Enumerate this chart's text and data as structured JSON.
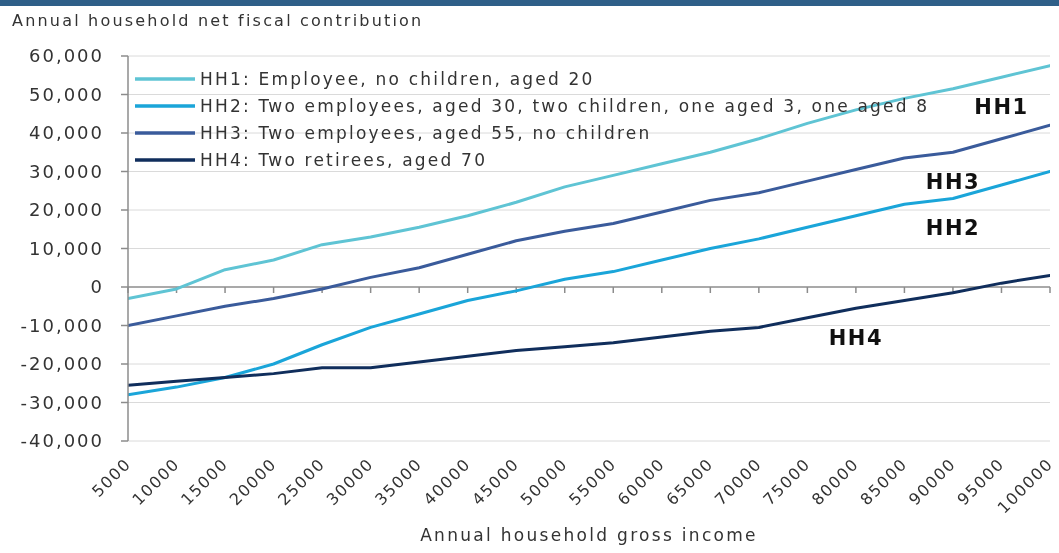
{
  "chart_data": {
    "type": "line",
    "ylabel": "Annual household net fiscal contribution",
    "xlabel": "Annual household gross income",
    "x": [
      5000,
      10000,
      15000,
      20000,
      25000,
      30000,
      35000,
      40000,
      45000,
      50000,
      55000,
      60000,
      65000,
      70000,
      75000,
      80000,
      85000,
      90000,
      95000,
      100000
    ],
    "series": [
      {
        "name": "HH1: Employee, no children, aged 20",
        "color": "#5fc4d4",
        "values": [
          -3000,
          -500,
          4500,
          7000,
          11000,
          13000,
          15500,
          18500,
          22000,
          26000,
          29000,
          32000,
          35000,
          38500,
          42500,
          46000,
          49000,
          51500,
          54500,
          57500
        ]
      },
      {
        "name": "HH2: Two employees, aged 30, two children, one aged 3, one aged 8",
        "color": "#1aa5d9",
        "values": [
          -28000,
          -26000,
          -23500,
          -20000,
          -15000,
          -10500,
          -7000,
          -3500,
          -1000,
          2000,
          4000,
          7000,
          10000,
          12500,
          15500,
          18500,
          21500,
          23000,
          26500,
          30000
        ]
      },
      {
        "name": "HH3: Two employees, aged 55, no children",
        "color": "#3a5b9b",
        "values": [
          -10000,
          -7500,
          -5000,
          -3000,
          -500,
          2500,
          5000,
          8500,
          12000,
          14500,
          16500,
          19500,
          22500,
          24500,
          27500,
          30500,
          33500,
          35000,
          38500,
          42000
        ]
      },
      {
        "name": "HH4: Two retirees, aged 70",
        "color": "#102e5c",
        "values": [
          -25500,
          -24500,
          -23500,
          -22500,
          -21000,
          -21000,
          -19500,
          -18000,
          -16500,
          -15500,
          -14500,
          -13000,
          -11500,
          -10500,
          -8000,
          -5500,
          -3500,
          -1500,
          1000,
          3000
        ]
      }
    ],
    "xlim": [
      5000,
      100000
    ],
    "xticks": [
      5000,
      10000,
      15000,
      20000,
      25000,
      30000,
      35000,
      40000,
      45000,
      50000,
      55000,
      60000,
      65000,
      70000,
      75000,
      80000,
      85000,
      90000,
      95000,
      100000
    ],
    "ylim": [
      -40000,
      60000
    ],
    "yticks": [
      {
        "value": -40000,
        "label": "-40,000"
      },
      {
        "value": -30000,
        "label": "-30,000"
      },
      {
        "value": -20000,
        "label": "-20,000"
      },
      {
        "value": -10000,
        "label": "-10,000"
      },
      0,
      {
        "value": 10000,
        "label": "10,000"
      },
      {
        "value": 20000,
        "label": "20,000"
      },
      {
        "value": 30000,
        "label": "30,000"
      },
      {
        "value": 40000,
        "label": "40,000"
      },
      {
        "value": 50000,
        "label": "50,000"
      },
      {
        "value": 60000,
        "label": "60,000"
      }
    ],
    "grid": "y",
    "legend": "top left",
    "marker": "none",
    "line_style": "solid",
    "annotations": [
      {
        "text": "HH1",
        "x": 95000,
        "y": 54500
      },
      {
        "text": "HH3",
        "x": 90000,
        "y": 35000
      },
      {
        "text": "HH2",
        "x": 90000,
        "y": 23000
      },
      {
        "text": "HH4",
        "x": 80000,
        "y": -5500
      }
    ]
  }
}
